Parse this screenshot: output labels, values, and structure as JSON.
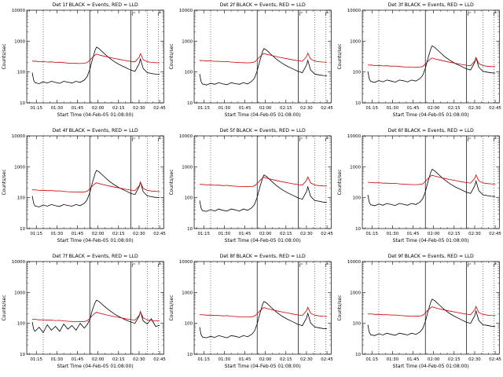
{
  "page": {
    "background": "#ffffff"
  },
  "colors": {
    "events": "#000000",
    "lld": "#cc0000",
    "axis": "#000000"
  },
  "axis": {
    "ylabel": "Counts/sec",
    "xlabel": "Start Time (04-Feb-05 01:08:00)",
    "ytick_labels": [
      "10",
      "100",
      "1000",
      "10000"
    ],
    "xtick_labels": [
      "01:15",
      "01:30",
      "01:45",
      "02:00",
      "02:15",
      "02:30",
      "02:45"
    ],
    "xtick_pos": [
      7,
      22,
      37,
      52,
      67,
      82,
      97
    ],
    "xrange": [
      0,
      100
    ],
    "ylog_range": [
      1,
      4
    ],
    "grid": false,
    "legend": "in-title"
  },
  "vlines": {
    "dotted": [
      12,
      88,
      96
    ],
    "solid": [
      46,
      76
    ]
  },
  "flag_marks": [
    77,
    96
  ],
  "time_minutes": [
    4,
    5,
    6,
    9,
    12,
    15,
    18,
    21,
    24,
    27,
    30,
    33,
    36,
    39,
    42,
    44,
    46,
    48,
    50,
    51,
    53,
    56,
    60,
    64,
    68,
    72,
    76,
    79,
    82,
    83,
    85,
    88,
    91,
    94,
    97
  ],
  "chart_data": [
    {
      "type": "line",
      "title": "Det 1f BLACK = Events, RED = LLD",
      "series": [
        {
          "name": "Events",
          "color": "#000000",
          "values": [
            95,
            55,
            45,
            42,
            48,
            44,
            50,
            46,
            43,
            50,
            47,
            44,
            50,
            46,
            55,
            70,
            120,
            260,
            520,
            640,
            560,
            420,
            290,
            215,
            170,
            140,
            115,
            105,
            185,
            265,
            130,
            95,
            90,
            85,
            84
          ]
        },
        {
          "name": "LLD",
          "color": "#cc0000",
          "values": [
            230,
            220,
            225,
            215,
            218,
            210,
            212,
            205,
            208,
            200,
            195,
            192,
            190,
            188,
            192,
            200,
            240,
            300,
            360,
            380,
            355,
            330,
            300,
            275,
            255,
            235,
            220,
            212,
            300,
            390,
            250,
            215,
            205,
            200,
            198
          ]
        }
      ]
    },
    {
      "type": "line",
      "title": "Det 2f BLACK = Events, RED = LLD",
      "series": [
        {
          "name": "Events",
          "color": "#000000",
          "values": [
            86,
            50,
            41,
            38,
            43,
            40,
            45,
            41,
            39,
            45,
            42,
            40,
            45,
            41,
            50,
            63,
            108,
            234,
            468,
            576,
            504,
            378,
            261,
            194,
            153,
            126,
            104,
            95,
            167,
            239,
            117,
            86,
            81,
            77,
            76
          ]
        },
        {
          "name": "LLD",
          "color": "#cc0000",
          "values": [
            242,
            231,
            236,
            226,
            229,
            221,
            223,
            215,
            218,
            210,
            205,
            202,
            200,
            197,
            202,
            210,
            252,
            315,
            378,
            399,
            373,
            347,
            315,
            289,
            268,
            247,
            231,
            223,
            315,
            410,
            263,
            226,
            215,
            210,
            208
          ]
        }
      ]
    },
    {
      "type": "line",
      "title": "Det 3f BLACK = Events, RED = LLD",
      "series": [
        {
          "name": "Events",
          "color": "#000000",
          "values": [
            105,
            61,
            50,
            46,
            53,
            48,
            55,
            51,
            47,
            55,
            52,
            48,
            55,
            51,
            61,
            77,
            132,
            286,
            572,
            704,
            616,
            462,
            319,
            237,
            187,
            154,
            127,
            116,
            204,
            292,
            143,
            105,
            99,
            94,
            92
          ]
        },
        {
          "name": "LLD",
          "color": "#cc0000",
          "values": [
            173,
            165,
            169,
            161,
            164,
            158,
            159,
            154,
            156,
            150,
            146,
            144,
            143,
            141,
            144,
            150,
            180,
            225,
            270,
            285,
            266,
            248,
            225,
            206,
            191,
            176,
            165,
            159,
            225,
            293,
            188,
            161,
            154,
            150,
            149
          ]
        }
      ]
    },
    {
      "type": "line",
      "title": "Det 4f BLACK = Events, RED = LLD",
      "series": [
        {
          "name": "Events",
          "color": "#000000",
          "values": [
            114,
            66,
            54,
            50,
            58,
            53,
            60,
            55,
            52,
            60,
            56,
            53,
            60,
            55,
            66,
            84,
            144,
            312,
            624,
            768,
            672,
            504,
            348,
            258,
            204,
            168,
            138,
            126,
            222,
            318,
            156,
            114,
            108,
            102,
            101
          ]
        },
        {
          "name": "LLD",
          "color": "#cc0000",
          "values": [
            184,
            176,
            180,
            172,
            174,
            168,
            170,
            164,
            166,
            160,
            156,
            154,
            152,
            150,
            154,
            160,
            192,
            240,
            288,
            304,
            284,
            264,
            240,
            220,
            204,
            188,
            176,
            170,
            240,
            312,
            200,
            172,
            164,
            160,
            158
          ]
        }
      ]
    },
    {
      "type": "line",
      "title": "Det 5f BLACK = Events, RED = LLD",
      "series": [
        {
          "name": "Events",
          "color": "#000000",
          "values": [
            81,
            47,
            38,
            36,
            41,
            37,
            43,
            39,
            37,
            43,
            40,
            37,
            43,
            39,
            47,
            60,
            102,
            221,
            442,
            544,
            476,
            357,
            247,
            183,
            145,
            119,
            98,
            89,
            157,
            225,
            111,
            81,
            77,
            72,
            71
          ]
        },
        {
          "name": "LLD",
          "color": "#cc0000",
          "values": [
            276,
            264,
            270,
            258,
            262,
            252,
            254,
            246,
            250,
            240,
            234,
            230,
            228,
            226,
            230,
            240,
            288,
            360,
            432,
            456,
            426,
            396,
            360,
            330,
            306,
            282,
            264,
            254,
            360,
            468,
            300,
            258,
            246,
            240,
            238
          ]
        }
      ]
    },
    {
      "type": "line",
      "title": "Det 6f BLACK = Events, RED = LLD",
      "series": [
        {
          "name": "Events",
          "color": "#000000",
          "values": [
            124,
            72,
            59,
            55,
            62,
            57,
            65,
            60,
            56,
            65,
            61,
            57,
            65,
            60,
            72,
            91,
            156,
            338,
            676,
            832,
            728,
            546,
            377,
            280,
            221,
            182,
            150,
            137,
            241,
            345,
            169,
            124,
            117,
            111,
            109
          ]
        },
        {
          "name": "LLD",
          "color": "#cc0000",
          "values": [
            322,
            308,
            315,
            301,
            305,
            294,
            297,
            287,
            291,
            280,
            273,
            269,
            266,
            263,
            269,
            280,
            336,
            420,
            504,
            532,
            497,
            462,
            420,
            385,
            357,
            329,
            308,
            297,
            420,
            546,
            350,
            301,
            287,
            280,
            277
          ]
        }
      ]
    },
    {
      "type": "line",
      "title": "Det 7f BLACK = Events, RED = LLD",
      "series": [
        {
          "name": "Events",
          "color": "#000000",
          "values": [
            110,
            65,
            55,
            75,
            50,
            90,
            60,
            80,
            55,
            95,
            65,
            85,
            60,
            100,
            70,
            90,
            130,
            280,
            480,
            560,
            500,
            380,
            270,
            200,
            160,
            130,
            110,
            100,
            170,
            240,
            120,
            95,
            140,
            80,
            85
          ]
        },
        {
          "name": "LLD",
          "color": "#cc0000",
          "values": [
            138,
            132,
            135,
            129,
            131,
            126,
            127,
            123,
            125,
            120,
            117,
            115,
            114,
            113,
            115,
            120,
            144,
            180,
            216,
            228,
            213,
            198,
            180,
            165,
            153,
            141,
            132,
            127,
            180,
            234,
            150,
            129,
            123,
            120,
            119
          ]
        }
      ]
    },
    {
      "type": "line",
      "title": "Det 8f BLACK = Events, RED = LLD",
      "series": [
        {
          "name": "Events",
          "color": "#000000",
          "values": [
            76,
            44,
            36,
            34,
            38,
            35,
            40,
            37,
            34,
            40,
            38,
            35,
            40,
            37,
            44,
            56,
            96,
            208,
            416,
            512,
            448,
            336,
            232,
            172,
            136,
            112,
            92,
            84,
            148,
            212,
            104,
            76,
            72,
            68,
            67
          ]
        },
        {
          "name": "LLD",
          "color": "#cc0000",
          "values": [
            196,
            187,
            191,
            183,
            185,
            179,
            180,
            174,
            177,
            170,
            166,
            163,
            162,
            160,
            163,
            170,
            204,
            255,
            306,
            323,
            302,
            281,
            255,
            234,
            217,
            200,
            187,
            180,
            255,
            332,
            213,
            183,
            174,
            170,
            168
          ]
        }
      ]
    },
    {
      "type": "line",
      "title": "Det 9f BLACK = Events, RED = LLD",
      "series": [
        {
          "name": "Events",
          "color": "#000000",
          "values": [
            90,
            52,
            43,
            40,
            46,
            42,
            48,
            44,
            41,
            48,
            45,
            42,
            48,
            44,
            52,
            67,
            114,
            247,
            494,
            608,
            532,
            399,
            276,
            204,
            162,
            133,
            109,
            100,
            176,
            252,
            124,
            90,
            86,
            81,
            80
          ]
        },
        {
          "name": "LLD",
          "color": "#cc0000",
          "values": [
            207,
            198,
            203,
            194,
            196,
            189,
            191,
            185,
            187,
            180,
            176,
            173,
            171,
            169,
            173,
            180,
            216,
            270,
            324,
            342,
            320,
            297,
            270,
            248,
            230,
            212,
            198,
            191,
            270,
            351,
            225,
            194,
            185,
            180,
            178
          ]
        }
      ]
    }
  ]
}
